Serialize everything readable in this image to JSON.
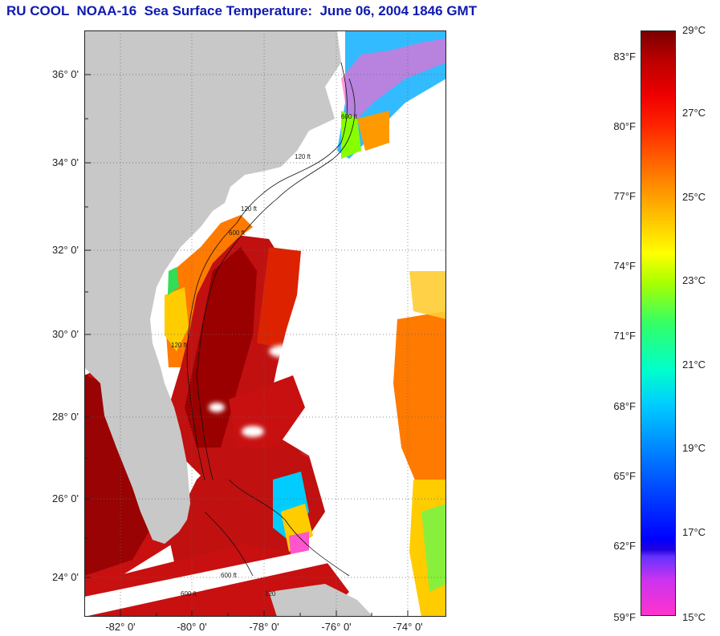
{
  "title": "RU COOL  NOAA-16  Sea Surface Temperature:  June 06, 2004 1846 GMT",
  "latitude_labels": [
    "36° 0'",
    "34° 0'",
    "32° 0'",
    "30° 0'",
    "28° 0'",
    "26° 0'",
    "24° 0'"
  ],
  "longitude_labels": [
    "-82° 0'",
    "-80° 0'",
    "-78° 0'",
    "-76° 0'",
    "-74° 0'"
  ],
  "isobath_labels": [
    "120 ft",
    "600 ft",
    "120 ft",
    "600 ft",
    "120 ft",
    "600 ft",
    "600 ft",
    "120"
  ],
  "colorbar": {
    "fahrenheit": [
      "83°F",
      "80°F",
      "77°F",
      "74°F",
      "71°F",
      "68°F",
      "65°F",
      "62°F",
      "59°F"
    ],
    "celsius": [
      "29°C",
      "27°C",
      "25°C",
      "23°C",
      "21°C",
      "19°C",
      "17°C",
      "15°C"
    ],
    "range_c": [
      15,
      29
    ],
    "range_f": [
      59,
      84.2
    ]
  },
  "colors": {
    "title": "#0f1ab0",
    "land": "#c8c8c8",
    "no_data": "#ffffff",
    "warm": "#cc1111",
    "hot": "#8a0000"
  }
}
